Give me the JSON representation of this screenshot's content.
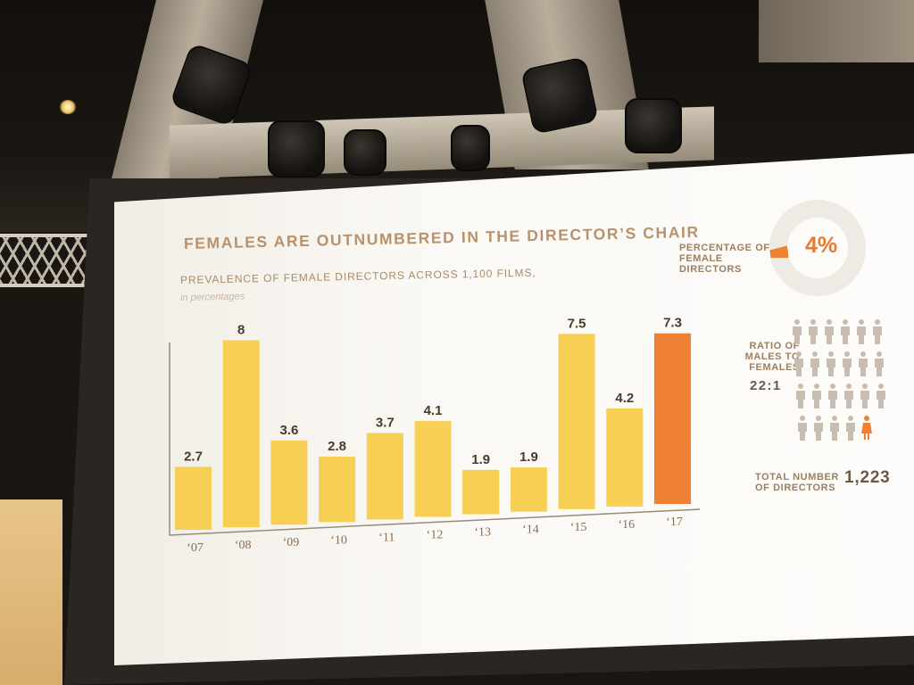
{
  "slide": {
    "title": "FEMALES ARE OUTNUMBERED IN THE DIRECTOR’S CHAIR",
    "subtitle": "PREVALENCE OF FEMALE DIRECTORS ACROSS 1,100 FILMS,",
    "unit_note": "in percentages"
  },
  "stats": {
    "percentage_label": "PERCENTAGE OF FEMALE DIRECTORS",
    "percentage_value": "4%",
    "percentage_fraction": 0.04,
    "ratio_label": "RATIO OF MALES TO FEMALES",
    "ratio_value": "22:1",
    "total_label": "TOTAL NUMBER OF DIRECTORS",
    "total_value": "1,223"
  },
  "colors": {
    "bar": "#f7cf55",
    "highlight": "#ee8133",
    "title": "#b8926a",
    "male_icon": "#c9bcb0",
    "female_icon": "#ee8133",
    "donut_track": "#eeeae4"
  },
  "icons": [
    "male-person-icon",
    "female-person-icon"
  ],
  "chart_data": {
    "type": "bar",
    "title": "FEMALES ARE OUTNUMBERED IN THE DIRECTOR’S CHAIR",
    "subtitle": "PREVALENCE OF FEMALE DIRECTORS ACROSS 1,100 FILMS,",
    "ylabel": "in percentages",
    "categories": [
      "‘07",
      "‘08",
      "‘09",
      "‘10",
      "‘11",
      "‘12",
      "‘13",
      "‘14",
      "‘15",
      "‘16",
      "‘17"
    ],
    "values": [
      2.7,
      8,
      3.6,
      2.8,
      3.7,
      4.1,
      1.9,
      1.9,
      7.5,
      4.2,
      7.3
    ],
    "value_labels": [
      "2.7",
      "8",
      "3.6",
      "2.8",
      "3.7",
      "4.1",
      "1.9",
      "1.9",
      "7.5",
      "4.2",
      "7.3"
    ],
    "highlight_index": 10,
    "ylim": [
      0,
      8
    ],
    "grid": false,
    "legend": "none"
  }
}
